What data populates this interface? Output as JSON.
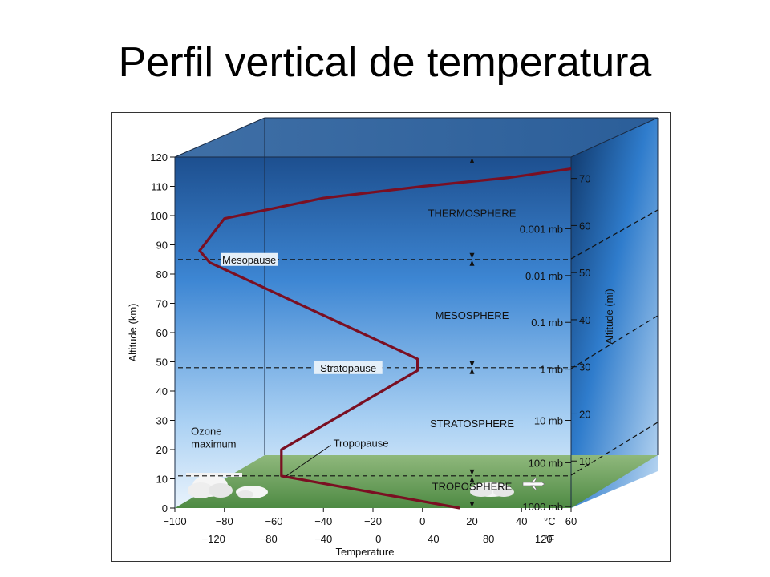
{
  "slide": {
    "title": "Perfil vertical de temperatura"
  },
  "chart_data": {
    "type": "line",
    "title": "",
    "xlabel": "Temperature",
    "ylabel": "Altitude (km)",
    "y2label": "Altitude (mi)",
    "xlim": [
      -100,
      60
    ],
    "ylim": [
      0,
      120
    ],
    "x_ticks_c": [
      -100,
      -80,
      -60,
      -40,
      -20,
      0,
      20,
      40,
      60
    ],
    "x_ticks_f": [
      {
        "c": -84.4,
        "label": "−120"
      },
      {
        "c": -62.2,
        "label": "−80"
      },
      {
        "c": -40,
        "label": "−40"
      },
      {
        "c": -17.8,
        "label": "0"
      },
      {
        "c": 4.4,
        "label": "40"
      },
      {
        "c": 26.7,
        "label": "80"
      },
      {
        "c": 48.9,
        "label": "120"
      }
    ],
    "unit_c": "°C",
    "unit_f": "°F",
    "y_ticks_km": [
      0,
      10,
      20,
      30,
      40,
      50,
      60,
      70,
      80,
      90,
      100,
      110,
      120
    ],
    "y_ticks_mi": [
      {
        "km": 16.1,
        "label": "10"
      },
      {
        "km": 32.2,
        "label": "20"
      },
      {
        "km": 48.3,
        "label": "30"
      },
      {
        "km": 64.4,
        "label": "40"
      },
      {
        "km": 80.5,
        "label": "50"
      },
      {
        "km": 96.6,
        "label": "60"
      },
      {
        "km": 112.7,
        "label": "70"
      }
    ],
    "pressure_labels": [
      {
        "km": 0.5,
        "label": "1000 mb"
      },
      {
        "km": 15.5,
        "label": "100 mb"
      },
      {
        "km": 30,
        "label": "10 mb"
      },
      {
        "km": 47.5,
        "label": "1 mb"
      },
      {
        "km": 63.5,
        "label": "0.1 mb"
      },
      {
        "km": 79.5,
        "label": "0.01 mb"
      },
      {
        "km": 95.5,
        "label": "0.001 mb"
      }
    ],
    "series": [
      {
        "name": "",
        "color": "#7a0f22",
        "points": [
          {
            "x": 15,
            "y": 0
          },
          {
            "x": -57,
            "y": 11
          },
          {
            "x": -57,
            "y": 20
          },
          {
            "x": -2,
            "y": 47
          },
          {
            "x": -2,
            "y": 51
          },
          {
            "x": -86,
            "y": 84
          },
          {
            "x": -90,
            "y": 88
          },
          {
            "x": -80,
            "y": 99
          },
          {
            "x": -40,
            "y": 106
          },
          {
            "x": 0,
            "y": 110
          },
          {
            "x": 35,
            "y": 113
          },
          {
            "x": 60,
            "y": 116
          }
        ]
      }
    ],
    "boundaries": [
      {
        "name": "Tropopause",
        "km": 11
      },
      {
        "name": "Stratopause",
        "km": 48
      },
      {
        "name": "Mesopause",
        "km": 85
      }
    ],
    "layers": [
      {
        "name": "TROPOSPHERE",
        "km": 7.5
      },
      {
        "name": "STRATOSPHERE",
        "km": 29
      },
      {
        "name": "MESOSPHERE",
        "km": 66
      },
      {
        "name": "THERMOSPHERE",
        "km": 101
      }
    ],
    "annotations": [
      {
        "text": "Ozone",
        "x": -98,
        "y": 26.5
      },
      {
        "text": "maximum",
        "x": -98,
        "y": 22
      }
    ],
    "colors": {
      "sky_top": "#1d4f8f",
      "sky_bottom": "#e6f1fb",
      "ground": "#6e9d5c",
      "profile": "#7a0f22"
    }
  }
}
